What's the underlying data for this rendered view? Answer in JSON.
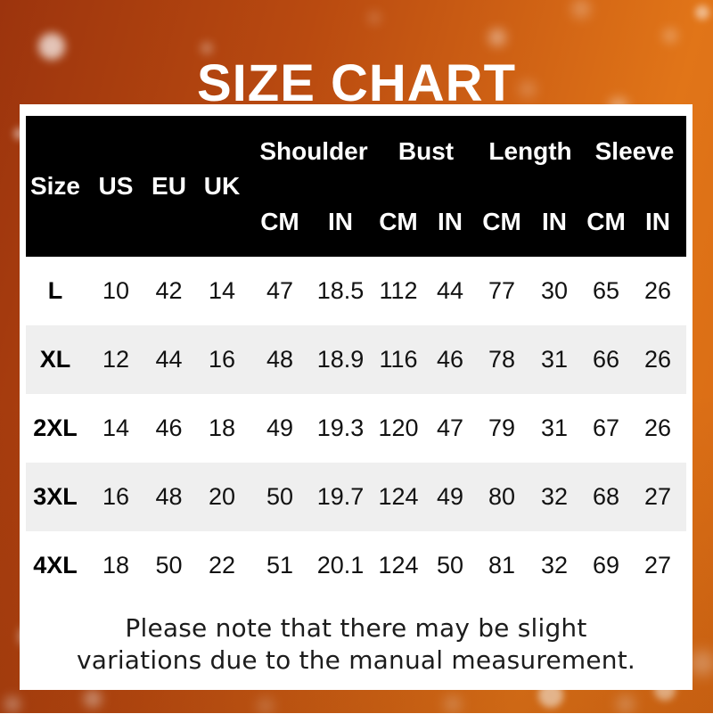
{
  "title": "SIZE CHART",
  "table": {
    "base_headers": [
      "Size",
      "US",
      "EU",
      "UK"
    ],
    "measure_groups": [
      "Shoulder",
      "Bust",
      "Length",
      "Sleeve"
    ],
    "unit_headers": [
      "CM",
      "IN",
      "CM",
      "IN",
      "CM",
      "IN",
      "CM",
      "IN"
    ],
    "rows": [
      {
        "size": "L",
        "values": [
          "10",
          "42",
          "14",
          "47",
          "18.5",
          "112",
          "44",
          "77",
          "30",
          "65",
          "26"
        ]
      },
      {
        "size": "XL",
        "values": [
          "12",
          "44",
          "16",
          "48",
          "18.9",
          "116",
          "46",
          "78",
          "31",
          "66",
          "26"
        ]
      },
      {
        "size": "2XL",
        "values": [
          "14",
          "46",
          "18",
          "49",
          "19.3",
          "120",
          "47",
          "79",
          "31",
          "67",
          "26"
        ]
      },
      {
        "size": "3XL",
        "values": [
          "16",
          "48",
          "20",
          "50",
          "19.7",
          "124",
          "49",
          "80",
          "32",
          "68",
          "27"
        ]
      },
      {
        "size": "4XL",
        "values": [
          "18",
          "50",
          "22",
          "51",
          "20.1",
          "124",
          "50",
          "81",
          "32",
          "69",
          "27"
        ]
      }
    ]
  },
  "footer_note": {
    "line1": "Please note that there may be slight",
    "line2": "variations due to the manual measurement."
  },
  "colors": {
    "background_gradient_start": "#9c340d",
    "background_gradient_end": "#e17518",
    "header_background": "#000000",
    "header_text": "#ffffff",
    "row_alternate": "#efefef",
    "card_background": "#ffffff",
    "title_text": "#ffffff",
    "body_text": "#121212"
  }
}
